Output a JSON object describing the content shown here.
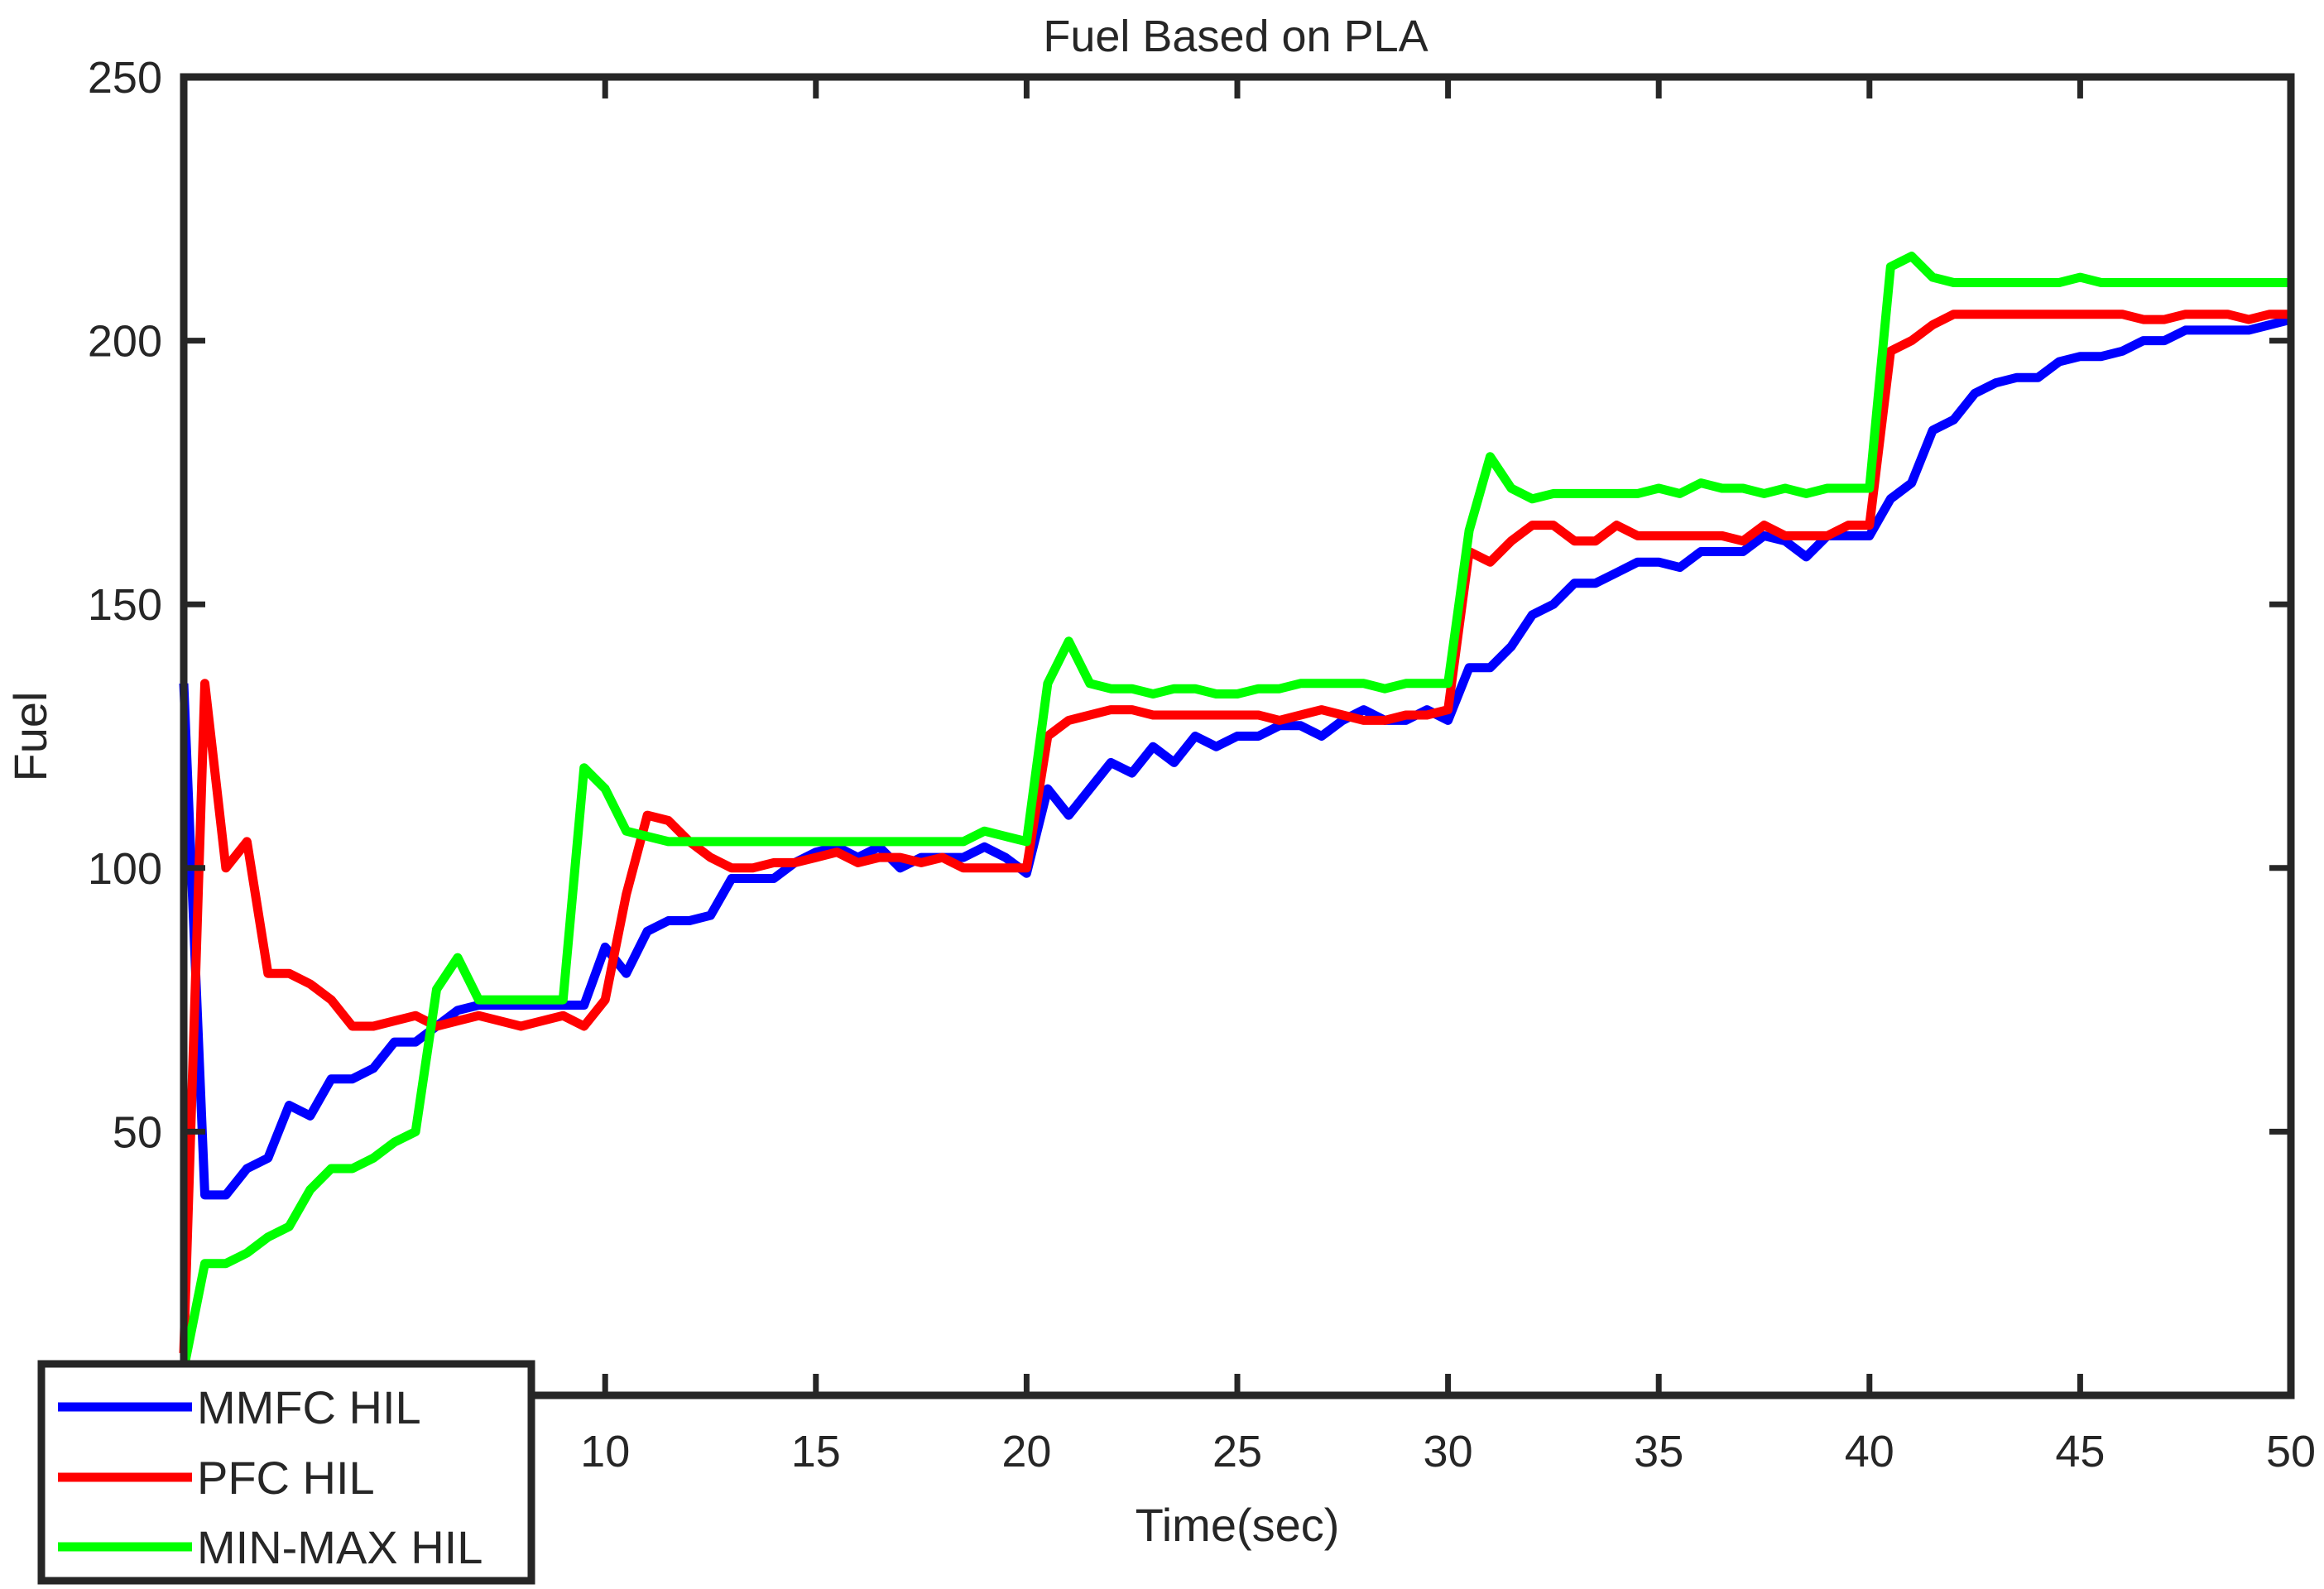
{
  "chart_data": {
    "type": "line",
    "title": "Fuel Based on PLA",
    "xlabel": "Time(sec)",
    "ylabel": "Fuel",
    "xlim": [
      0,
      50
    ],
    "ylim": [
      0,
      250
    ],
    "xticks": [
      10,
      15,
      20,
      25,
      30,
      35,
      40,
      45,
      50
    ],
    "xtick_labels": [
      "10",
      "15",
      "20",
      "25",
      "30",
      "35",
      "40",
      "45",
      "50"
    ],
    "yticks": [
      50,
      100,
      150,
      200,
      250
    ],
    "ytick_labels": [
      "50",
      "100",
      "150",
      "200",
      "250"
    ],
    "grid": false,
    "legend_position": "bottom-left",
    "series": [
      {
        "name": "MMFC HIL",
        "color": "#0000ff",
        "x": [
          0,
          0.5,
          1.0,
          1.5,
          2.0,
          2.5,
          3.0,
          3.5,
          4.0,
          4.5,
          5.0,
          5.5,
          6.0,
          6.5,
          7.0,
          7.5,
          8.0,
          8.5,
          9.0,
          9.5,
          10.0,
          10.5,
          11.0,
          11.5,
          12.0,
          12.5,
          13.0,
          13.5,
          14.0,
          14.5,
          15.0,
          15.5,
          16.0,
          16.5,
          17.0,
          17.5,
          18.0,
          18.5,
          19.0,
          19.5,
          20.0,
          20.5,
          21.0,
          21.5,
          22.0,
          22.5,
          23.0,
          23.5,
          24.0,
          24.5,
          25.0,
          25.5,
          26.0,
          26.5,
          27.0,
          27.5,
          28.0,
          28.5,
          29.0,
          29.5,
          30.0,
          30.5,
          31.0,
          31.5,
          32.0,
          32.5,
          33.0,
          33.5,
          34.0,
          34.5,
          35.0,
          35.5,
          36.0,
          36.5,
          37.0,
          37.5,
          38.0,
          38.5,
          39.0,
          39.5,
          40.0,
          40.5,
          41.0,
          41.5,
          42.0,
          42.5,
          43.0,
          43.5,
          44.0,
          44.5,
          45.0,
          45.5,
          46.0,
          46.5,
          47.0,
          47.5,
          48.0,
          48.5,
          49.0,
          49.5,
          50.0
        ],
        "values": [
          135,
          38,
          38,
          43,
          45,
          55,
          53,
          60,
          60,
          62,
          67,
          67,
          70,
          73,
          74,
          74,
          74,
          74,
          74,
          74,
          85,
          80,
          88,
          90,
          90,
          91,
          98,
          98,
          98,
          101,
          103,
          104,
          102,
          104,
          100,
          102,
          102,
          102,
          104,
          102,
          99,
          115,
          110,
          115,
          120,
          118,
          123,
          120,
          125,
          123,
          125,
          125,
          127,
          127,
          125,
          128,
          130,
          128,
          128,
          130,
          128,
          138,
          138,
          142,
          148,
          150,
          154,
          154,
          156,
          158,
          158,
          157,
          160,
          160,
          160,
          163,
          162,
          159,
          163,
          163,
          163,
          170,
          173,
          183,
          185,
          190,
          192,
          193,
          193,
          196,
          197,
          197,
          198,
          200,
          200,
          202,
          202,
          202,
          202,
          203,
          204
        ]
      },
      {
        "name": "PFC HIL",
        "color": "#ff0000",
        "x": [
          0,
          0.5,
          1.0,
          1.5,
          2.0,
          2.5,
          3.0,
          3.5,
          4.0,
          4.5,
          5.0,
          5.5,
          6.0,
          6.5,
          7.0,
          7.5,
          8.0,
          8.5,
          9.0,
          9.5,
          10.0,
          10.5,
          11.0,
          11.5,
          12.0,
          12.5,
          13.0,
          13.5,
          14.0,
          14.5,
          15.0,
          15.5,
          16.0,
          16.5,
          17.0,
          17.5,
          18.0,
          18.5,
          19.0,
          19.5,
          20.0,
          20.5,
          21.0,
          21.5,
          22.0,
          22.5,
          23.0,
          23.5,
          24.0,
          24.5,
          25.0,
          25.5,
          26.0,
          26.5,
          27.0,
          27.5,
          28.0,
          28.5,
          29.0,
          29.5,
          30.0,
          30.5,
          31.0,
          31.5,
          32.0,
          32.5,
          33.0,
          33.5,
          34.0,
          34.5,
          35.0,
          35.5,
          36.0,
          36.5,
          37.0,
          37.5,
          38.0,
          38.5,
          39.0,
          39.5,
          40.0,
          40.5,
          41.0,
          41.5,
          42.0,
          42.5,
          43.0,
          43.5,
          44.0,
          44.5,
          45.0,
          45.5,
          46.0,
          46.5,
          47.0,
          47.5,
          48.0,
          48.5,
          49.0,
          49.5,
          50.0
        ],
        "values": [
          8,
          135,
          100,
          105,
          80,
          80,
          78,
          75,
          70,
          70,
          71,
          72,
          70,
          71,
          72,
          71,
          70,
          71,
          72,
          70,
          75,
          95,
          110,
          109,
          105,
          102,
          100,
          100,
          101,
          101,
          102,
          103,
          101,
          102,
          102,
          101,
          102,
          100,
          100,
          100,
          100,
          125,
          128,
          129,
          130,
          130,
          129,
          129,
          129,
          129,
          129,
          129,
          128,
          129,
          130,
          129,
          128,
          128,
          129,
          129,
          130,
          160,
          158,
          162,
          165,
          165,
          162,
          162,
          165,
          163,
          163,
          163,
          163,
          163,
          162,
          165,
          163,
          163,
          163,
          165,
          165,
          198,
          200,
          203,
          205,
          205,
          205,
          205,
          205,
          205,
          205,
          205,
          205,
          204,
          204,
          205,
          205,
          205,
          204,
          205,
          205
        ]
      },
      {
        "name": "MIN-MAX HIL",
        "color": "#00ff00",
        "x": [
          0,
          0.5,
          1.0,
          1.5,
          2.0,
          2.5,
          3.0,
          3.5,
          4.0,
          4.5,
          5.0,
          5.5,
          6.0,
          6.5,
          7.0,
          7.5,
          8.0,
          8.5,
          9.0,
          9.5,
          10.0,
          10.5,
          11.0,
          11.5,
          12.0,
          12.5,
          13.0,
          13.5,
          14.0,
          14.5,
          15.0,
          15.5,
          16.0,
          16.5,
          17.0,
          17.5,
          18.0,
          18.5,
          19.0,
          19.5,
          20.0,
          20.5,
          21.0,
          21.5,
          22.0,
          22.5,
          23.0,
          23.5,
          24.0,
          24.5,
          25.0,
          25.5,
          26.0,
          26.5,
          27.0,
          27.5,
          28.0,
          28.5,
          29.0,
          29.5,
          30.0,
          30.5,
          31.0,
          31.5,
          32.0,
          32.5,
          33.0,
          33.5,
          34.0,
          34.5,
          35.0,
          35.5,
          36.0,
          36.5,
          37.0,
          37.5,
          38.0,
          38.5,
          39.0,
          39.5,
          40.0,
          40.5,
          41.0,
          41.5,
          42.0,
          42.5,
          43.0,
          43.5,
          44.0,
          44.5,
          45.0,
          45.5,
          46.0,
          46.5,
          47.0,
          47.5,
          48.0,
          48.5,
          49.0,
          49.5,
          50.0
        ],
        "values": [
          5,
          25,
          25,
          27,
          30,
          32,
          39,
          43,
          43,
          45,
          48,
          50,
          77,
          83,
          75,
          75,
          75,
          75,
          75,
          119,
          115,
          107,
          106,
          105,
          105,
          105,
          105,
          105,
          105,
          105,
          105,
          105,
          105,
          105,
          105,
          105,
          105,
          105,
          107,
          106,
          105,
          135,
          143,
          135,
          134,
          134,
          133,
          134,
          134,
          133,
          133,
          134,
          134,
          135,
          135,
          135,
          135,
          134,
          135,
          135,
          135,
          164,
          178,
          172,
          170,
          171,
          171,
          171,
          171,
          171,
          172,
          171,
          173,
          172,
          172,
          171,
          172,
          171,
          172,
          172,
          172,
          214,
          216,
          212,
          211,
          211,
          211,
          211,
          211,
          211,
          212,
          211,
          211,
          211,
          211,
          211,
          211,
          211,
          211,
          211,
          211
        ]
      }
    ]
  }
}
